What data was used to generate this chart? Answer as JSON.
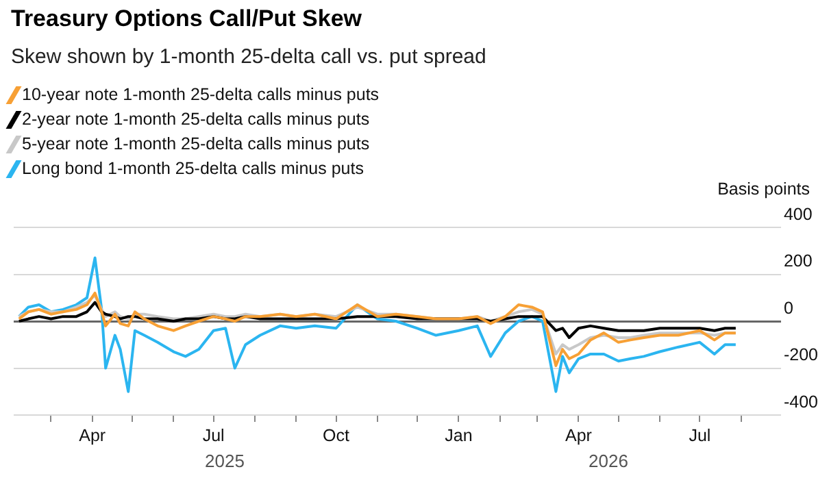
{
  "chart_data": {
    "type": "line",
    "title": "Treasury Options Call/Put Skew",
    "subtitle": "Skew shown by 1-month 25-delta call vs. put spread",
    "ylabel": "Basis points",
    "x": [
      "2025-02-05",
      "2025-02-12",
      "2025-02-20",
      "2025-03-01",
      "2025-03-10",
      "2025-03-20",
      "2025-03-28",
      "2025-04-03",
      "2025-04-08",
      "2025-04-11",
      "2025-04-18",
      "2025-04-22",
      "2025-04-28",
      "2025-05-03",
      "2025-05-10",
      "2025-05-20",
      "2025-06-01",
      "2025-06-10",
      "2025-06-20",
      "2025-07-01",
      "2025-07-10",
      "2025-07-17",
      "2025-07-25",
      "2025-08-05",
      "2025-08-20",
      "2025-09-01",
      "2025-09-15",
      "2025-10-01",
      "2025-10-17",
      "2025-11-01",
      "2025-11-15",
      "2025-12-01",
      "2025-12-15",
      "2026-01-01",
      "2026-01-15",
      "2026-01-25",
      "2026-02-05",
      "2026-02-15",
      "2026-02-25",
      "2026-03-05",
      "2026-03-15",
      "2026-03-20",
      "2026-03-25",
      "2026-04-01",
      "2026-04-10",
      "2026-04-20",
      "2026-05-01",
      "2026-05-10",
      "2026-05-20",
      "2026-06-01",
      "2026-06-15",
      "2026-07-01",
      "2026-07-12",
      "2026-07-20",
      "2026-07-28"
    ],
    "series": [
      {
        "name": "10-year note 1-month 25-delta calls minus puts",
        "color": "#f7a035",
        "values": [
          10,
          40,
          50,
          30,
          40,
          50,
          70,
          120,
          40,
          -20,
          30,
          -10,
          -20,
          40,
          10,
          -20,
          -40,
          -20,
          0,
          20,
          10,
          0,
          20,
          20,
          30,
          20,
          30,
          10,
          70,
          20,
          30,
          20,
          10,
          10,
          20,
          -10,
          20,
          70,
          60,
          40,
          -190,
          -120,
          -160,
          -140,
          -80,
          -50,
          -90,
          -80,
          -70,
          -60,
          -60,
          -40,
          -80,
          -50,
          -50
        ]
      },
      {
        "name": "2-year note 1-month 25-delta calls minus puts",
        "color": "#000000",
        "values": [
          0,
          10,
          20,
          10,
          20,
          20,
          40,
          80,
          40,
          30,
          20,
          10,
          20,
          20,
          10,
          10,
          0,
          10,
          10,
          20,
          10,
          10,
          20,
          10,
          10,
          10,
          10,
          10,
          20,
          20,
          20,
          10,
          10,
          10,
          10,
          0,
          10,
          20,
          20,
          20,
          -40,
          -30,
          -70,
          -30,
          -20,
          -30,
          -40,
          -40,
          -40,
          -30,
          -30,
          -30,
          -40,
          -30,
          -30
        ]
      },
      {
        "name": "5-year note 1-month 25-delta calls minus puts",
        "color": "#c8c8c8",
        "values": [
          20,
          40,
          50,
          40,
          40,
          60,
          80,
          110,
          50,
          20,
          40,
          20,
          10,
          30,
          30,
          20,
          10,
          10,
          20,
          30,
          20,
          20,
          30,
          20,
          30,
          20,
          30,
          20,
          60,
          30,
          30,
          20,
          10,
          10,
          20,
          0,
          20,
          40,
          50,
          30,
          -140,
          -100,
          -120,
          -100,
          -70,
          -60,
          -70,
          -70,
          -60,
          -50,
          -50,
          -50,
          -60,
          -50,
          -50
        ]
      },
      {
        "name": "Long bond 1-month 25-delta calls minus puts",
        "color": "#2bb5f0",
        "values": [
          20,
          60,
          70,
          40,
          50,
          70,
          100,
          270,
          50,
          -200,
          -60,
          -120,
          -300,
          -40,
          -60,
          -90,
          -130,
          -150,
          -120,
          -40,
          -30,
          -200,
          -100,
          -60,
          -20,
          -30,
          -20,
          -30,
          70,
          10,
          0,
          -30,
          -60,
          -40,
          -20,
          -150,
          -50,
          0,
          20,
          0,
          -300,
          -150,
          -220,
          -160,
          -140,
          -140,
          -170,
          -160,
          -150,
          -130,
          -110,
          -90,
          -140,
          -100,
          -100
        ]
      }
    ],
    "xlim": [
      "2025-02-01",
      "2026-08-31"
    ],
    "xticks": [
      {
        "value": "2025-03-01",
        "label": null
      },
      {
        "value": "2025-04-01",
        "label": "Apr"
      },
      {
        "value": "2025-05-01",
        "label": null
      },
      {
        "value": "2025-06-01",
        "label": null
      },
      {
        "value": "2025-07-01",
        "label": "Jul"
      },
      {
        "value": "2025-08-01",
        "label": null
      },
      {
        "value": "2025-09-01",
        "label": null
      },
      {
        "value": "2025-10-01",
        "label": "Oct"
      },
      {
        "value": "2025-11-01",
        "label": null
      },
      {
        "value": "2025-12-01",
        "label": null
      },
      {
        "value": "2026-01-01",
        "label": "Jan"
      },
      {
        "value": "2026-02-01",
        "label": null
      },
      {
        "value": "2026-03-01",
        "label": null
      },
      {
        "value": "2026-04-01",
        "label": "Apr"
      },
      {
        "value": "2026-05-01",
        "label": null
      },
      {
        "value": "2026-06-01",
        "label": null
      },
      {
        "value": "2026-07-01",
        "label": "Jul"
      },
      {
        "value": "2026-08-01",
        "label": null
      }
    ],
    "ylim": [
      -400,
      400
    ],
    "yticks": [
      -400,
      -200,
      0,
      200,
      400
    ],
    "annotations": [
      "2025",
      "2026"
    ],
    "grid": "y",
    "legend": "top left",
    "marker": "none",
    "line_style": "solid"
  }
}
